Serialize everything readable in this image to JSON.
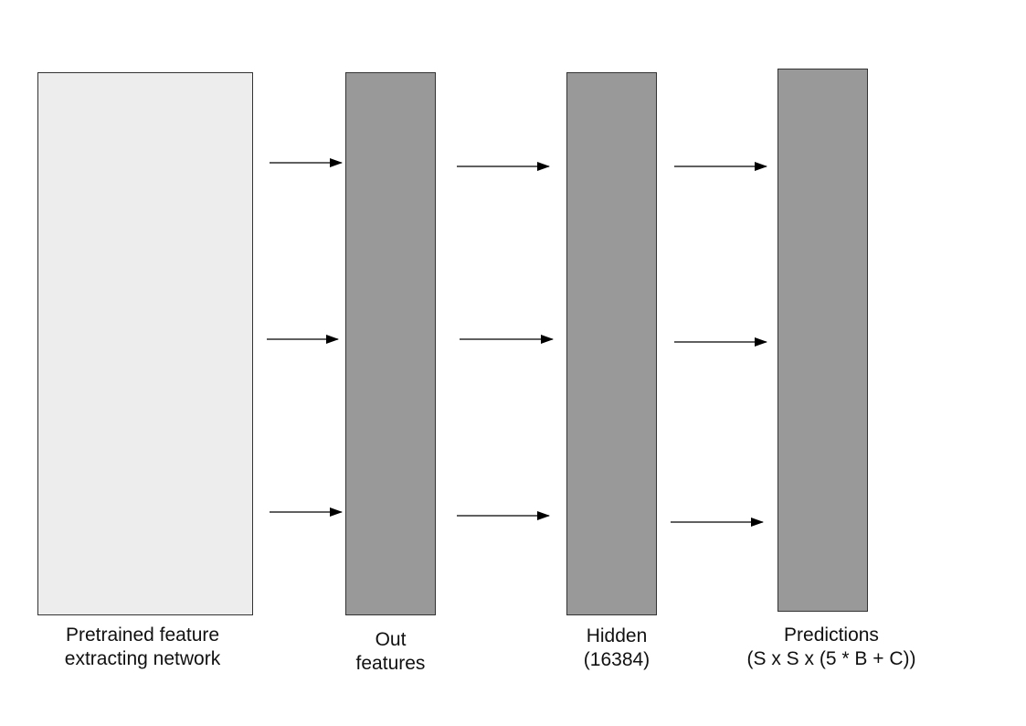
{
  "colors": {
    "pretrained_fill": "#ededed",
    "layer_fill": "#999999",
    "border": "#333333",
    "arrow": "#000000"
  },
  "blocks": [
    {
      "name": "pretrained",
      "label_lines": [
        "Pretrained feature",
        "extracting network"
      ]
    },
    {
      "name": "out",
      "label_lines": [
        "Out",
        "features"
      ]
    },
    {
      "name": "hidden",
      "label_lines": [
        "Hidden",
        "(16384)"
      ]
    },
    {
      "name": "pred",
      "label_lines": [
        "Predictions",
        "(S x S x (5 * B + C))"
      ]
    }
  ],
  "connections": [
    {
      "from": "pretrained",
      "to": "out",
      "count": 3
    },
    {
      "from": "out",
      "to": "hidden",
      "count": 3
    },
    {
      "from": "hidden",
      "to": "pred",
      "count": 3
    }
  ]
}
